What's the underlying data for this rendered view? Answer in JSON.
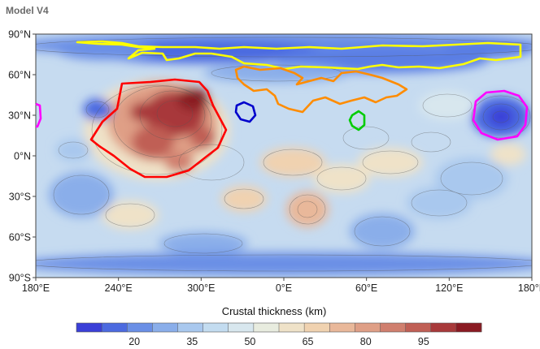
{
  "chart_data": {
    "type": "heatmap",
    "title": "Model V4",
    "colorbar_label": "Crustal thickness (km)",
    "x_ticks": [
      "180°E",
      "240°E",
      "300°E",
      "0°E",
      "60°E",
      "120°E",
      "180°E"
    ],
    "x_tick_values": [
      180,
      240,
      300,
      360,
      420,
      480,
      540
    ],
    "y_ticks": [
      "90°N",
      "60°N",
      "30°N",
      "0°N",
      "30°S",
      "60°S",
      "90°S"
    ],
    "y_tick_values": [
      90,
      60,
      30,
      0,
      -30,
      -60,
      -90
    ],
    "xlim": [
      180,
      540
    ],
    "ylim": [
      -90,
      90
    ],
    "colorbar_ticks": [
      "20",
      "35",
      "50",
      "65",
      "80",
      "95"
    ],
    "colorbar_tick_values": [
      20,
      35,
      50,
      65,
      80,
      95
    ],
    "colorbar_range": [
      5,
      110
    ],
    "colorbar_bins": [
      "#3a3fd8",
      "#4c6ae0",
      "#6a8fe6",
      "#8aaeea",
      "#a9c8ee",
      "#c3dcf0",
      "#d8e7ee",
      "#e8ecdf",
      "#efe2c8",
      "#f0d2b0",
      "#e9b89a",
      "#df9f86",
      "#d07f6e",
      "#c05f55",
      "#a8393a",
      "#8a1a22"
    ],
    "outlines": [
      {
        "color": "#ffff00",
        "region": "northern lowlands boundary"
      },
      {
        "color": "#ff8c00",
        "region": "northern margin"
      },
      {
        "color": "#ff0000",
        "region": "Tharsis"
      },
      {
        "color": "#0000cc",
        "region": "small northern region"
      },
      {
        "color": "#00cc00",
        "region": "small eastern region"
      },
      {
        "color": "#ff00ff",
        "region": "Elysium"
      }
    ],
    "grid": false
  }
}
